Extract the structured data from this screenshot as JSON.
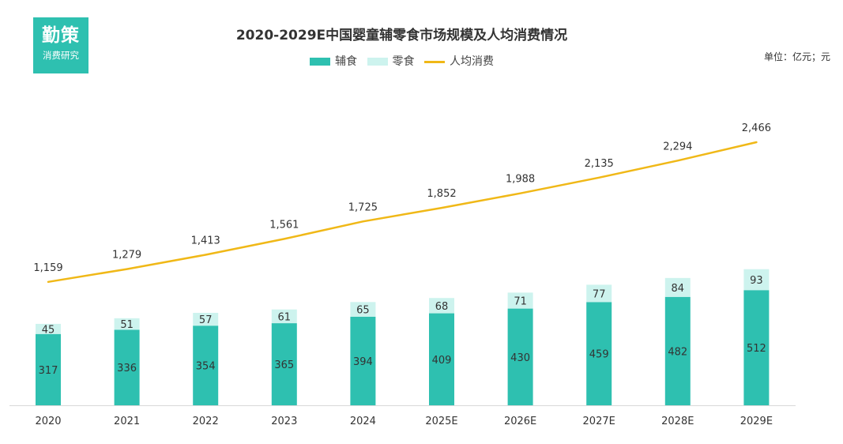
{
  "logo": {
    "top": "勤策",
    "bottom": "消费研究"
  },
  "unit": "单位：亿元；元",
  "colors": {
    "main": "#2ec0b0",
    "snack": "#cdf3ee",
    "line": "#f0b817"
  },
  "chart_data": {
    "type": "bar",
    "title": "2020-2029E中国婴童辅零食市场规模及人均消费情况",
    "categories": [
      "2020",
      "2021",
      "2022",
      "2023",
      "2024",
      "2025E",
      "2026E",
      "2027E",
      "2028E",
      "2029E"
    ],
    "series": [
      {
        "name": "辅食",
        "kind": "bar",
        "values": [
          317,
          336,
          354,
          365,
          394,
          409,
          430,
          459,
          482,
          512
        ]
      },
      {
        "name": "零食",
        "kind": "bar",
        "values": [
          45,
          51,
          57,
          61,
          65,
          68,
          71,
          77,
          84,
          93
        ]
      },
      {
        "name": "人均消费",
        "kind": "line",
        "values": [
          1159,
          1279,
          1413,
          1561,
          1725,
          1852,
          1988,
          2135,
          2294,
          2466
        ],
        "labels": [
          "1,159",
          "1,279",
          "1,413",
          "1,561",
          "1,725",
          "1,852",
          "1,988",
          "2,135",
          "2,294",
          "2,466"
        ]
      }
    ],
    "legend_position": "top-center",
    "grid": false
  }
}
